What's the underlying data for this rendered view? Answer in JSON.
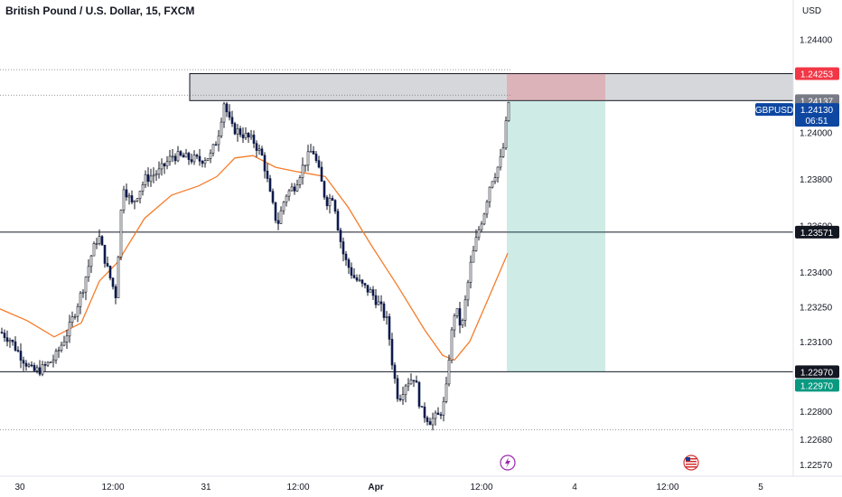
{
  "header": {
    "title": "British Pound / U.S. Dollar, 15, FXCM",
    "currency": "USD"
  },
  "price_tags": {
    "stop": {
      "value": "1.24253",
      "color": "#f23645"
    },
    "zone_top": {
      "value": "1.24137",
      "color": "#787b86"
    },
    "last": {
      "value": "1.24130",
      "symbol": "GBPUSD",
      "countdown": "06:51",
      "color": "#0d47a1"
    },
    "level": {
      "value": "1.23571",
      "color": "#131722"
    },
    "support": {
      "value": "1.22970",
      "color": "#131722"
    },
    "target": {
      "value": "1.22970",
      "color": "#089981"
    }
  },
  "events": {
    "flash_icon": "lightning-icon",
    "flag_icon": "us-flag-icon"
  },
  "chart_data": {
    "type": "candlestick",
    "symbol": "GBPUSD",
    "timeframe": "15",
    "ylim": [
      1.2252,
      1.2457
    ],
    "y_ticks": [
      "1.24400",
      "1.24000",
      "1.23800",
      "1.23600",
      "1.23400",
      "1.23250",
      "1.23100",
      "1.22800",
      "1.22680",
      "1.22570"
    ],
    "x_ticks": [
      "30",
      "12:00",
      "31",
      "12:00",
      "Apr",
      "12:00",
      "4",
      "12:00",
      "5"
    ],
    "close_path": [
      [
        0,
        1.2314
      ],
      [
        10,
        1.2311
      ],
      [
        20,
        1.2305
      ],
      [
        35,
        1.2297
      ],
      [
        45,
        1.2298
      ],
      [
        60,
        1.2303
      ],
      [
        75,
        1.2315
      ],
      [
        90,
        1.2332
      ],
      [
        100,
        1.2347
      ],
      [
        108,
        1.2356
      ],
      [
        118,
        1.2341
      ],
      [
        127,
        1.233
      ],
      [
        135,
        1.2378
      ],
      [
        145,
        1.2369
      ],
      [
        160,
        1.238
      ],
      [
        175,
        1.2383
      ],
      [
        190,
        1.239
      ],
      [
        205,
        1.2389
      ],
      [
        220,
        1.2388
      ],
      [
        232,
        1.239
      ],
      [
        240,
        1.2398
      ],
      [
        247,
        1.2413
      ],
      [
        255,
        1.2402
      ],
      [
        265,
        1.24
      ],
      [
        280,
        1.2396
      ],
      [
        290,
        1.2389
      ],
      [
        298,
        1.2373
      ],
      [
        306,
        1.236
      ],
      [
        315,
        1.2373
      ],
      [
        325,
        1.2377
      ],
      [
        335,
        1.2386
      ],
      [
        345,
        1.2393
      ],
      [
        352,
        1.2383
      ],
      [
        360,
        1.237
      ],
      [
        368,
        1.2373
      ],
      [
        374,
        1.2357
      ],
      [
        380,
        1.2346
      ],
      [
        390,
        1.2338
      ],
      [
        400,
        1.2334
      ],
      [
        410,
        1.2331
      ],
      [
        420,
        1.2325
      ],
      [
        428,
        1.2318
      ],
      [
        434,
        1.2298
      ],
      [
        440,
        1.2285
      ],
      [
        448,
        1.2292
      ],
      [
        458,
        1.2295
      ],
      [
        465,
        1.228
      ],
      [
        475,
        1.2276
      ],
      [
        485,
        1.2278
      ],
      [
        492,
        1.2285
      ],
      [
        497,
        1.2308
      ],
      [
        503,
        1.2325
      ],
      [
        510,
        1.2315
      ],
      [
        515,
        1.233
      ],
      [
        520,
        1.2343
      ],
      [
        528,
        1.2357
      ],
      [
        535,
        1.2366
      ],
      [
        542,
        1.2379
      ],
      [
        548,
        1.2383
      ],
      [
        555,
        1.239
      ],
      [
        562,
        1.2413
      ]
    ],
    "moving_average": [
      [
        0,
        1.2324
      ],
      [
        30,
        1.2319
      ],
      [
        60,
        1.2312
      ],
      [
        90,
        1.2318
      ],
      [
        110,
        1.2336
      ],
      [
        130,
        1.2344
      ],
      [
        160,
        1.2363
      ],
      [
        190,
        1.2373
      ],
      [
        220,
        1.2377
      ],
      [
        240,
        1.2381
      ],
      [
        260,
        1.2389
      ],
      [
        280,
        1.239
      ],
      [
        305,
        1.2385
      ],
      [
        330,
        1.2383
      ],
      [
        360,
        1.2381
      ],
      [
        385,
        1.2368
      ],
      [
        410,
        1.2352
      ],
      [
        440,
        1.2334
      ],
      [
        470,
        1.2315
      ],
      [
        490,
        1.2304
      ],
      [
        503,
        1.2302
      ],
      [
        520,
        1.231
      ],
      [
        540,
        1.2328
      ],
      [
        562,
        1.2348
      ]
    ],
    "horizontal_lines": [
      1.23571,
      1.2297
    ],
    "dotted_lines": [
      1.2427,
      1.2416,
      1.2272
    ],
    "resistance_zone": {
      "top": 1.24253,
      "bottom": 1.24137
    },
    "short_position": {
      "entry": 1.24137,
      "stop": 1.24253,
      "target": 1.2297
    }
  }
}
